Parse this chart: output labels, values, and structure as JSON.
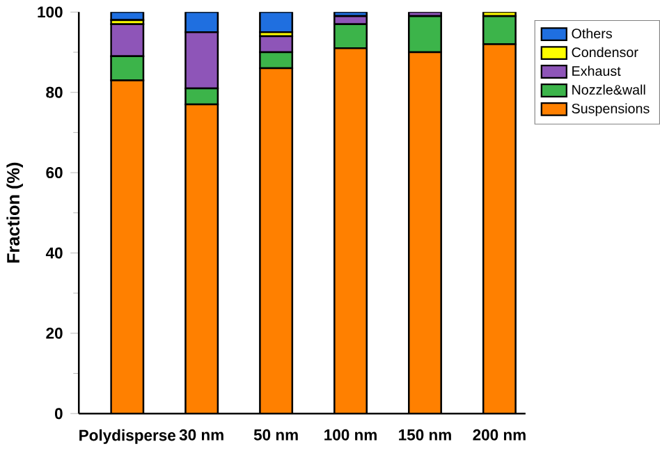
{
  "chart_data": {
    "type": "bar",
    "stacked": true,
    "ylabel": "Fraction (%)",
    "categories": [
      "Polydisperse",
      "30 nm",
      "50 nm",
      "100 nm",
      "150 nm",
      "200 nm"
    ],
    "series": [
      {
        "name": "Suspensions",
        "color": "#ff8000",
        "values": [
          83,
          77,
          86,
          91,
          90,
          92
        ]
      },
      {
        "name": "Nozzle&wall",
        "color": "#3cb44a",
        "values": [
          6,
          4,
          4,
          6,
          9,
          7
        ]
      },
      {
        "name": "Exhaust",
        "color": "#8e55b8",
        "values": [
          8,
          14,
          4,
          2,
          1,
          0
        ]
      },
      {
        "name": "Condensor",
        "color": "#ffff00",
        "values": [
          1,
          0,
          1,
          0,
          0,
          1
        ]
      },
      {
        "name": "Others",
        "color": "#1f6fe0",
        "values": [
          2,
          5,
          5,
          1,
          0,
          0
        ]
      }
    ],
    "ylim": [
      0,
      100
    ],
    "yticks": [
      0,
      20,
      40,
      60,
      80,
      100
    ],
    "legend": "top right"
  }
}
